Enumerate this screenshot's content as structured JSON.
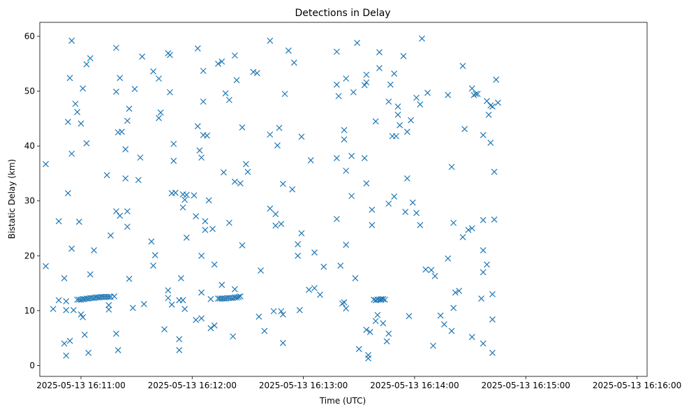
{
  "chart_data": {
    "type": "scatter",
    "title": "Detections in Delay",
    "xlabel": "Time (UTC)",
    "ylabel": "Bistatic Delay (km)",
    "marker": "x",
    "marker_color": "#1f77b4",
    "grid": false,
    "legend": "none",
    "xlim": [
      "2025-05-13 16:10:39",
      "2025-05-13 16:16:15"
    ],
    "ylim": [
      -2,
      63
    ],
    "x_ticks": [
      "2025-05-13 16:11:00",
      "2025-05-13 16:12:00",
      "2025-05-13 16:13:00",
      "2025-05-13 16:14:00",
      "2025-05-13 16:15:00",
      "2025-05-13 16:16:00"
    ],
    "y_ticks": [
      "0",
      "10",
      "20",
      "30",
      "40",
      "50",
      "60"
    ],
    "x_units": "seconds after 2025-05-13 16:10:00",
    "points": [
      [
        41,
        36.7
      ],
      [
        41,
        18.1
      ],
      [
        45,
        10.3
      ],
      [
        48,
        26.3
      ],
      [
        48,
        11.9
      ],
      [
        51,
        15.9
      ],
      [
        51,
        4.0
      ],
      [
        52,
        1.8
      ],
      [
        52,
        10.1
      ],
      [
        52,
        11.7
      ],
      [
        53,
        44.4
      ],
      [
        53,
        31.4
      ],
      [
        54,
        4.5
      ],
      [
        54,
        52.4
      ],
      [
        55,
        59.2
      ],
      [
        55,
        38.6
      ],
      [
        55,
        21.3
      ],
      [
        56,
        10.1
      ],
      [
        57,
        47.7
      ],
      [
        58,
        46.2
      ],
      [
        58,
        12.0
      ],
      [
        59,
        26.2
      ],
      [
        59,
        12.0
      ],
      [
        60,
        44.1
      ],
      [
        60,
        12.0
      ],
      [
        60,
        9.3
      ],
      [
        61,
        50.5
      ],
      [
        61,
        12.1
      ],
      [
        61,
        8.8
      ],
      [
        62,
        5.6
      ],
      [
        62,
        12.1
      ],
      [
        63,
        54.9
      ],
      [
        63,
        40.5
      ],
      [
        63,
        12.2
      ],
      [
        64,
        2.3
      ],
      [
        64,
        12.2
      ],
      [
        65,
        56.0
      ],
      [
        65,
        16.6
      ],
      [
        65,
        12.3
      ],
      [
        66,
        12.3
      ],
      [
        67,
        21.0
      ],
      [
        67,
        12.3
      ],
      [
        68,
        12.4
      ],
      [
        69,
        12.4
      ],
      [
        70,
        12.4
      ],
      [
        71,
        12.5
      ],
      [
        72,
        12.5
      ],
      [
        73,
        12.5
      ],
      [
        74,
        34.7
      ],
      [
        74,
        12.5
      ],
      [
        75,
        10.2
      ],
      [
        75,
        11.0
      ],
      [
        75,
        12.5
      ],
      [
        76,
        23.7
      ],
      [
        76,
        12.5
      ],
      [
        78,
        12.6
      ],
      [
        79,
        57.9
      ],
      [
        79,
        49.9
      ],
      [
        79,
        28.1
      ],
      [
        79,
        5.8
      ],
      [
        80,
        42.5
      ],
      [
        80,
        2.8
      ],
      [
        81,
        52.4
      ],
      [
        81,
        27.3
      ],
      [
        82,
        42.6
      ],
      [
        84,
        39.4
      ],
      [
        84,
        34.1
      ],
      [
        85,
        44.6
      ],
      [
        85,
        28.1
      ],
      [
        85,
        25.3
      ],
      [
        86,
        46.8
      ],
      [
        86,
        15.8
      ],
      [
        88,
        10.5
      ],
      [
        89,
        50.4
      ],
      [
        91,
        33.8
      ],
      [
        92,
        37.9
      ],
      [
        93,
        56.3
      ],
      [
        94,
        11.2
      ],
      [
        98,
        22.6
      ],
      [
        99,
        53.6
      ],
      [
        99,
        18.2
      ],
      [
        100,
        20.1
      ],
      [
        102,
        52.3
      ],
      [
        102,
        45.1
      ],
      [
        103,
        46.1
      ],
      [
        105,
        6.6
      ],
      [
        107,
        56.9
      ],
      [
        107,
        13.7
      ],
      [
        107,
        12.3
      ],
      [
        108,
        56.6
      ],
      [
        108,
        49.8
      ],
      [
        109,
        31.4
      ],
      [
        109,
        11.1
      ],
      [
        110,
        40.4
      ],
      [
        110,
        37.3
      ],
      [
        111,
        31.5
      ],
      [
        113,
        11.9
      ],
      [
        113,
        4.8
      ],
      [
        113,
        2.8
      ],
      [
        114,
        15.9
      ],
      [
        115,
        31.2
      ],
      [
        115,
        28.8
      ],
      [
        115,
        11.9
      ],
      [
        116,
        30.2
      ],
      [
        116,
        10.3
      ],
      [
        117,
        31.1
      ],
      [
        117,
        23.3
      ],
      [
        121,
        31.0
      ],
      [
        122,
        27.2
      ],
      [
        122,
        8.3
      ],
      [
        123,
        43.6
      ],
      [
        123,
        57.8
      ],
      [
        124,
        39.2
      ],
      [
        125,
        37.9
      ],
      [
        125,
        20.0
      ],
      [
        125,
        13.3
      ],
      [
        125,
        8.6
      ],
      [
        126,
        48.1
      ],
      [
        126,
        53.7
      ],
      [
        126,
        42.0
      ],
      [
        127,
        26.3
      ],
      [
        127,
        24.7
      ],
      [
        128,
        41.9
      ],
      [
        129,
        30.1
      ],
      [
        130,
        6.8
      ],
      [
        130,
        12.1
      ],
      [
        131,
        24.9
      ],
      [
        132,
        7.3
      ],
      [
        132,
        18.4
      ],
      [
        134,
        12.2
      ],
      [
        134,
        55.0
      ],
      [
        135,
        12.2
      ],
      [
        136,
        55.4
      ],
      [
        136,
        14.7
      ],
      [
        136,
        12.2
      ],
      [
        137,
        35.2
      ],
      [
        137,
        12.2
      ],
      [
        138,
        49.6
      ],
      [
        138,
        12.2
      ],
      [
        139,
        12.3
      ],
      [
        140,
        48.4
      ],
      [
        140,
        12.3
      ],
      [
        140,
        26.0
      ],
      [
        141,
        12.3
      ],
      [
        142,
        12.3
      ],
      [
        142,
        5.3
      ],
      [
        143,
        56.5
      ],
      [
        143,
        12.4
      ],
      [
        143,
        13.9
      ],
      [
        143,
        33.5
      ],
      [
        144,
        52.0
      ],
      [
        144,
        12.4
      ],
      [
        145,
        12.5
      ],
      [
        146,
        33.2
      ],
      [
        146,
        12.6
      ],
      [
        147,
        21.9
      ],
      [
        147,
        43.4
      ],
      [
        149,
        36.7
      ],
      [
        150,
        35.3
      ],
      [
        153,
        53.5
      ],
      [
        155,
        53.3
      ],
      [
        156,
        8.9
      ],
      [
        157,
        17.3
      ],
      [
        159,
        6.3
      ],
      [
        162,
        42.1
      ],
      [
        162,
        28.6
      ],
      [
        162,
        59.2
      ],
      [
        164,
        9.9
      ],
      [
        165,
        27.6
      ],
      [
        165,
        25.5
      ],
      [
        166,
        40.1
      ],
      [
        167,
        43.3
      ],
      [
        168,
        25.8
      ],
      [
        168,
        9.9
      ],
      [
        169,
        4.1
      ],
      [
        169,
        9.3
      ],
      [
        169,
        33.1
      ],
      [
        170,
        49.5
      ],
      [
        172,
        57.4
      ],
      [
        174,
        32.1
      ],
      [
        175,
        55.2
      ],
      [
        177,
        22.1
      ],
      [
        177,
        20.0
      ],
      [
        178,
        10.1
      ],
      [
        179,
        41.7
      ],
      [
        179,
        24.1
      ],
      [
        183,
        13.8
      ],
      [
        184,
        37.4
      ],
      [
        186,
        20.6
      ],
      [
        186,
        14.1
      ],
      [
        189,
        12.9
      ],
      [
        191,
        18.0
      ],
      [
        198,
        57.2
      ],
      [
        198,
        51.2
      ],
      [
        198,
        37.8
      ],
      [
        198,
        26.7
      ],
      [
        199,
        49.1
      ],
      [
        200,
        18.2
      ],
      [
        201,
        11.3
      ],
      [
        202,
        42.9
      ],
      [
        202,
        41.2
      ],
      [
        202,
        11.5
      ],
      [
        203,
        52.3
      ],
      [
        203,
        22.0
      ],
      [
        203,
        35.5
      ],
      [
        203,
        10.4
      ],
      [
        206,
        38.2
      ],
      [
        206,
        30.9
      ],
      [
        207,
        49.8
      ],
      [
        208,
        15.9
      ],
      [
        209,
        58.8
      ],
      [
        210,
        3.0
      ],
      [
        213,
        37.8
      ],
      [
        213,
        51.1
      ],
      [
        214,
        51.6
      ],
      [
        214,
        53.0
      ],
      [
        214,
        33.2
      ],
      [
        214,
        6.5
      ],
      [
        215,
        1.9
      ],
      [
        215,
        1.3
      ],
      [
        216,
        6.1
      ],
      [
        217,
        28.4
      ],
      [
        217,
        25.6
      ],
      [
        218,
        12.0
      ],
      [
        219,
        44.5
      ],
      [
        219,
        11.9
      ],
      [
        219,
        8.1
      ],
      [
        220,
        12.0
      ],
      [
        220,
        9.2
      ],
      [
        221,
        12.0
      ],
      [
        221,
        57.1
      ],
      [
        221,
        54.2
      ],
      [
        222,
        12.1
      ],
      [
        222,
        12.0
      ],
      [
        223,
        12.1
      ],
      [
        223,
        7.7
      ],
      [
        224,
        12.0
      ],
      [
        225,
        4.4
      ],
      [
        226,
        5.8
      ],
      [
        226,
        48.1
      ],
      [
        226,
        29.5
      ],
      [
        227,
        51.2
      ],
      [
        228,
        41.8
      ],
      [
        229,
        30.8
      ],
      [
        229,
        53.2
      ],
      [
        230,
        41.8
      ],
      [
        231,
        45.7
      ],
      [
        231,
        47.2
      ],
      [
        232,
        43.8
      ],
      [
        234,
        56.4
      ],
      [
        235,
        28.0
      ],
      [
        236,
        42.6
      ],
      [
        236,
        34.1
      ],
      [
        237,
        9.0
      ],
      [
        238,
        44.7
      ],
      [
        239,
        29.7
      ],
      [
        241,
        48.8
      ],
      [
        241,
        27.8
      ],
      [
        243,
        25.6
      ],
      [
        243,
        47.6
      ],
      [
        244,
        59.6
      ],
      [
        246,
        17.5
      ],
      [
        247,
        49.7
      ],
      [
        249,
        17.4
      ],
      [
        250,
        3.6
      ],
      [
        251,
        16.3
      ],
      [
        254,
        9.1
      ],
      [
        256,
        7.5
      ],
      [
        258,
        49.3
      ],
      [
        258,
        19.5
      ],
      [
        260,
        6.3
      ],
      [
        260,
        36.2
      ],
      [
        261,
        26.0
      ],
      [
        261,
        10.5
      ],
      [
        262,
        13.3
      ],
      [
        264,
        13.6
      ],
      [
        266,
        23.4
      ],
      [
        266,
        54.6
      ],
      [
        267,
        43.1
      ],
      [
        269,
        24.7
      ],
      [
        271,
        25.0
      ],
      [
        271,
        50.5
      ],
      [
        271,
        5.2
      ],
      [
        272,
        49.3
      ],
      [
        273,
        49.5
      ],
      [
        274,
        49.5
      ],
      [
        276,
        12.2
      ],
      [
        277,
        21.0
      ],
      [
        277,
        17.0
      ],
      [
        277,
        26.5
      ],
      [
        277,
        42.0
      ],
      [
        277,
        4.0
      ],
      [
        279,
        18.4
      ],
      [
        279,
        48.2
      ],
      [
        280,
        45.7
      ],
      [
        281,
        47.4
      ],
      [
        281,
        40.6
      ],
      [
        282,
        47.2
      ],
      [
        282,
        8.4
      ],
      [
        282,
        13.0
      ],
      [
        282,
        2.3
      ],
      [
        283,
        26.6
      ],
      [
        283,
        35.3
      ],
      [
        284,
        52.1
      ],
      [
        285,
        47.9
      ]
    ]
  }
}
